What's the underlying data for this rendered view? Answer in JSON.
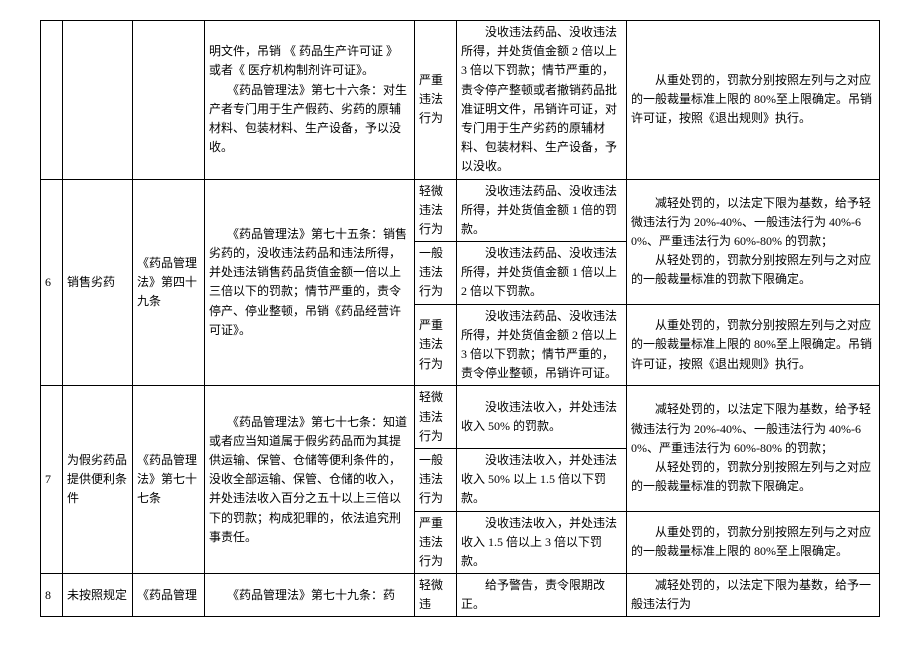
{
  "colors": {
    "text": "#000000",
    "border": "#000000",
    "background": "#ffffff"
  },
  "columnWidths": {
    "idx": 22,
    "name": 70,
    "basis": 72,
    "norm": 210,
    "level": 42,
    "cond": 170
  },
  "rows": {
    "rowA": {
      "norm": "明文件，吊销 《 药品生产许可证 》 或者《 医疗机构制剂许可证》。\n　　《药品管理法》第七十六条：对生产者专门用于生产假药、劣药的原辅材料、包装材料、生产设备，予以没收。",
      "level": "严重违法行为",
      "cond": "　　没收违法药品、没收违法所得，并处货值金额 2 倍以上 3 倍以下罚款；情节严重的，责令停产整顿或者撤销药品批准证明文件，吊销许可证，对专门用于生产劣药的原辅材料、包装材料、生产设备，予以没收。",
      "penal": "　　从重处罚的，罚款分别按照左列与之对应的一般裁量标准上限的 80%至上限确定。吊销许可证，按照《退出规则》执行。"
    },
    "row6": {
      "idx": "6",
      "name": "销售劣药",
      "basis": "《药品管理法》第四十九条",
      "norm": "　　《药品管理法》第七十五条：销售劣药的，没收违法药品和违法所得，并处违法销售药品货值金额一倍以上三倍以下的罚款；情节严重的，责令停产、停业整顿，吊销《药品经营许可证》。",
      "lv1": "轻微违法行为",
      "cond1": "　　没收违法药品、没收违法所得，并处货值金额 1 倍的罚款。",
      "penal1": "　　减轻处罚的，以法定下限为基数，给予轻微违法行为 20%-40%、一般违法行为 40%-60%、严重违法行为 60%-80% 的罚款；\n　　从轻处罚的，罚款分别按照左列与之对应的一般裁量标准的罚款下限确定。",
      "lv2": "一般违法行为",
      "cond2": "　　没收违法药品、没收违法所得，并处货值金额 1 倍以上 2 倍以下罚款。",
      "lv3": "严重违法行为",
      "cond3": "　　没收违法药品、没收违法所得，并处货值金额 2 倍以上 3 倍以下罚款；情节严重的，责令停业整顿，吊销许可证。",
      "penal3": "　　从重处罚的，罚款分别按照左列与之对应的一般裁量标准上限的 80%至上限确定。吊销许可证，按照《退出规则》执行。"
    },
    "row7": {
      "idx": "7",
      "name": "为假劣药品提供便利条件",
      "basis": "《药品管理法》第七十七条",
      "norm": "　　《药品管理法》第七十七条：知道或者应当知道属于假劣药品而为其提供运输、保管、仓储等便利条件的，没收全部运输、保管、仓储的收入，并处违法收入百分之五十以上三倍以下的罚款；构成犯罪的，依法追究刑事责任。",
      "lv1": "轻微违法行为",
      "cond1": "　　没收违法收入，并处违法收入 50% 的罚款。",
      "penal1": "　　减轻处罚的，以法定下限为基数，给予轻微违法行为 20%-40%、一般违法行为 40%-60%、严重违法行为 60%-80% 的罚款；\n　　从轻处罚的，罚款分别按照左列与之对应的一般裁量标准的罚款下限确定。",
      "lv2": "一般违法行为",
      "cond2": "　　没收违法收入，并处违法收入 50% 以上 1.5 倍以下罚款。",
      "lv3": "严重违法行为",
      "cond3": "　　没收违法收入，并处违法收入 1.5 倍以上 3 倍以下罚款。",
      "penal3": "　　从重处罚的，罚款分别按照左列与之对应的一般裁量标准上限的 80%至上限确定。"
    },
    "row8": {
      "idx": "8",
      "name": "未按照规定",
      "basis": "《药品管理",
      "norm": "　　《药品管理法》第七十九条：药",
      "lv": "轻微违",
      "cond": "　　给予警告，责令限期改正。",
      "penal": "　　减轻处罚的，以法定下限为基数，给予一般违法行为"
    }
  }
}
